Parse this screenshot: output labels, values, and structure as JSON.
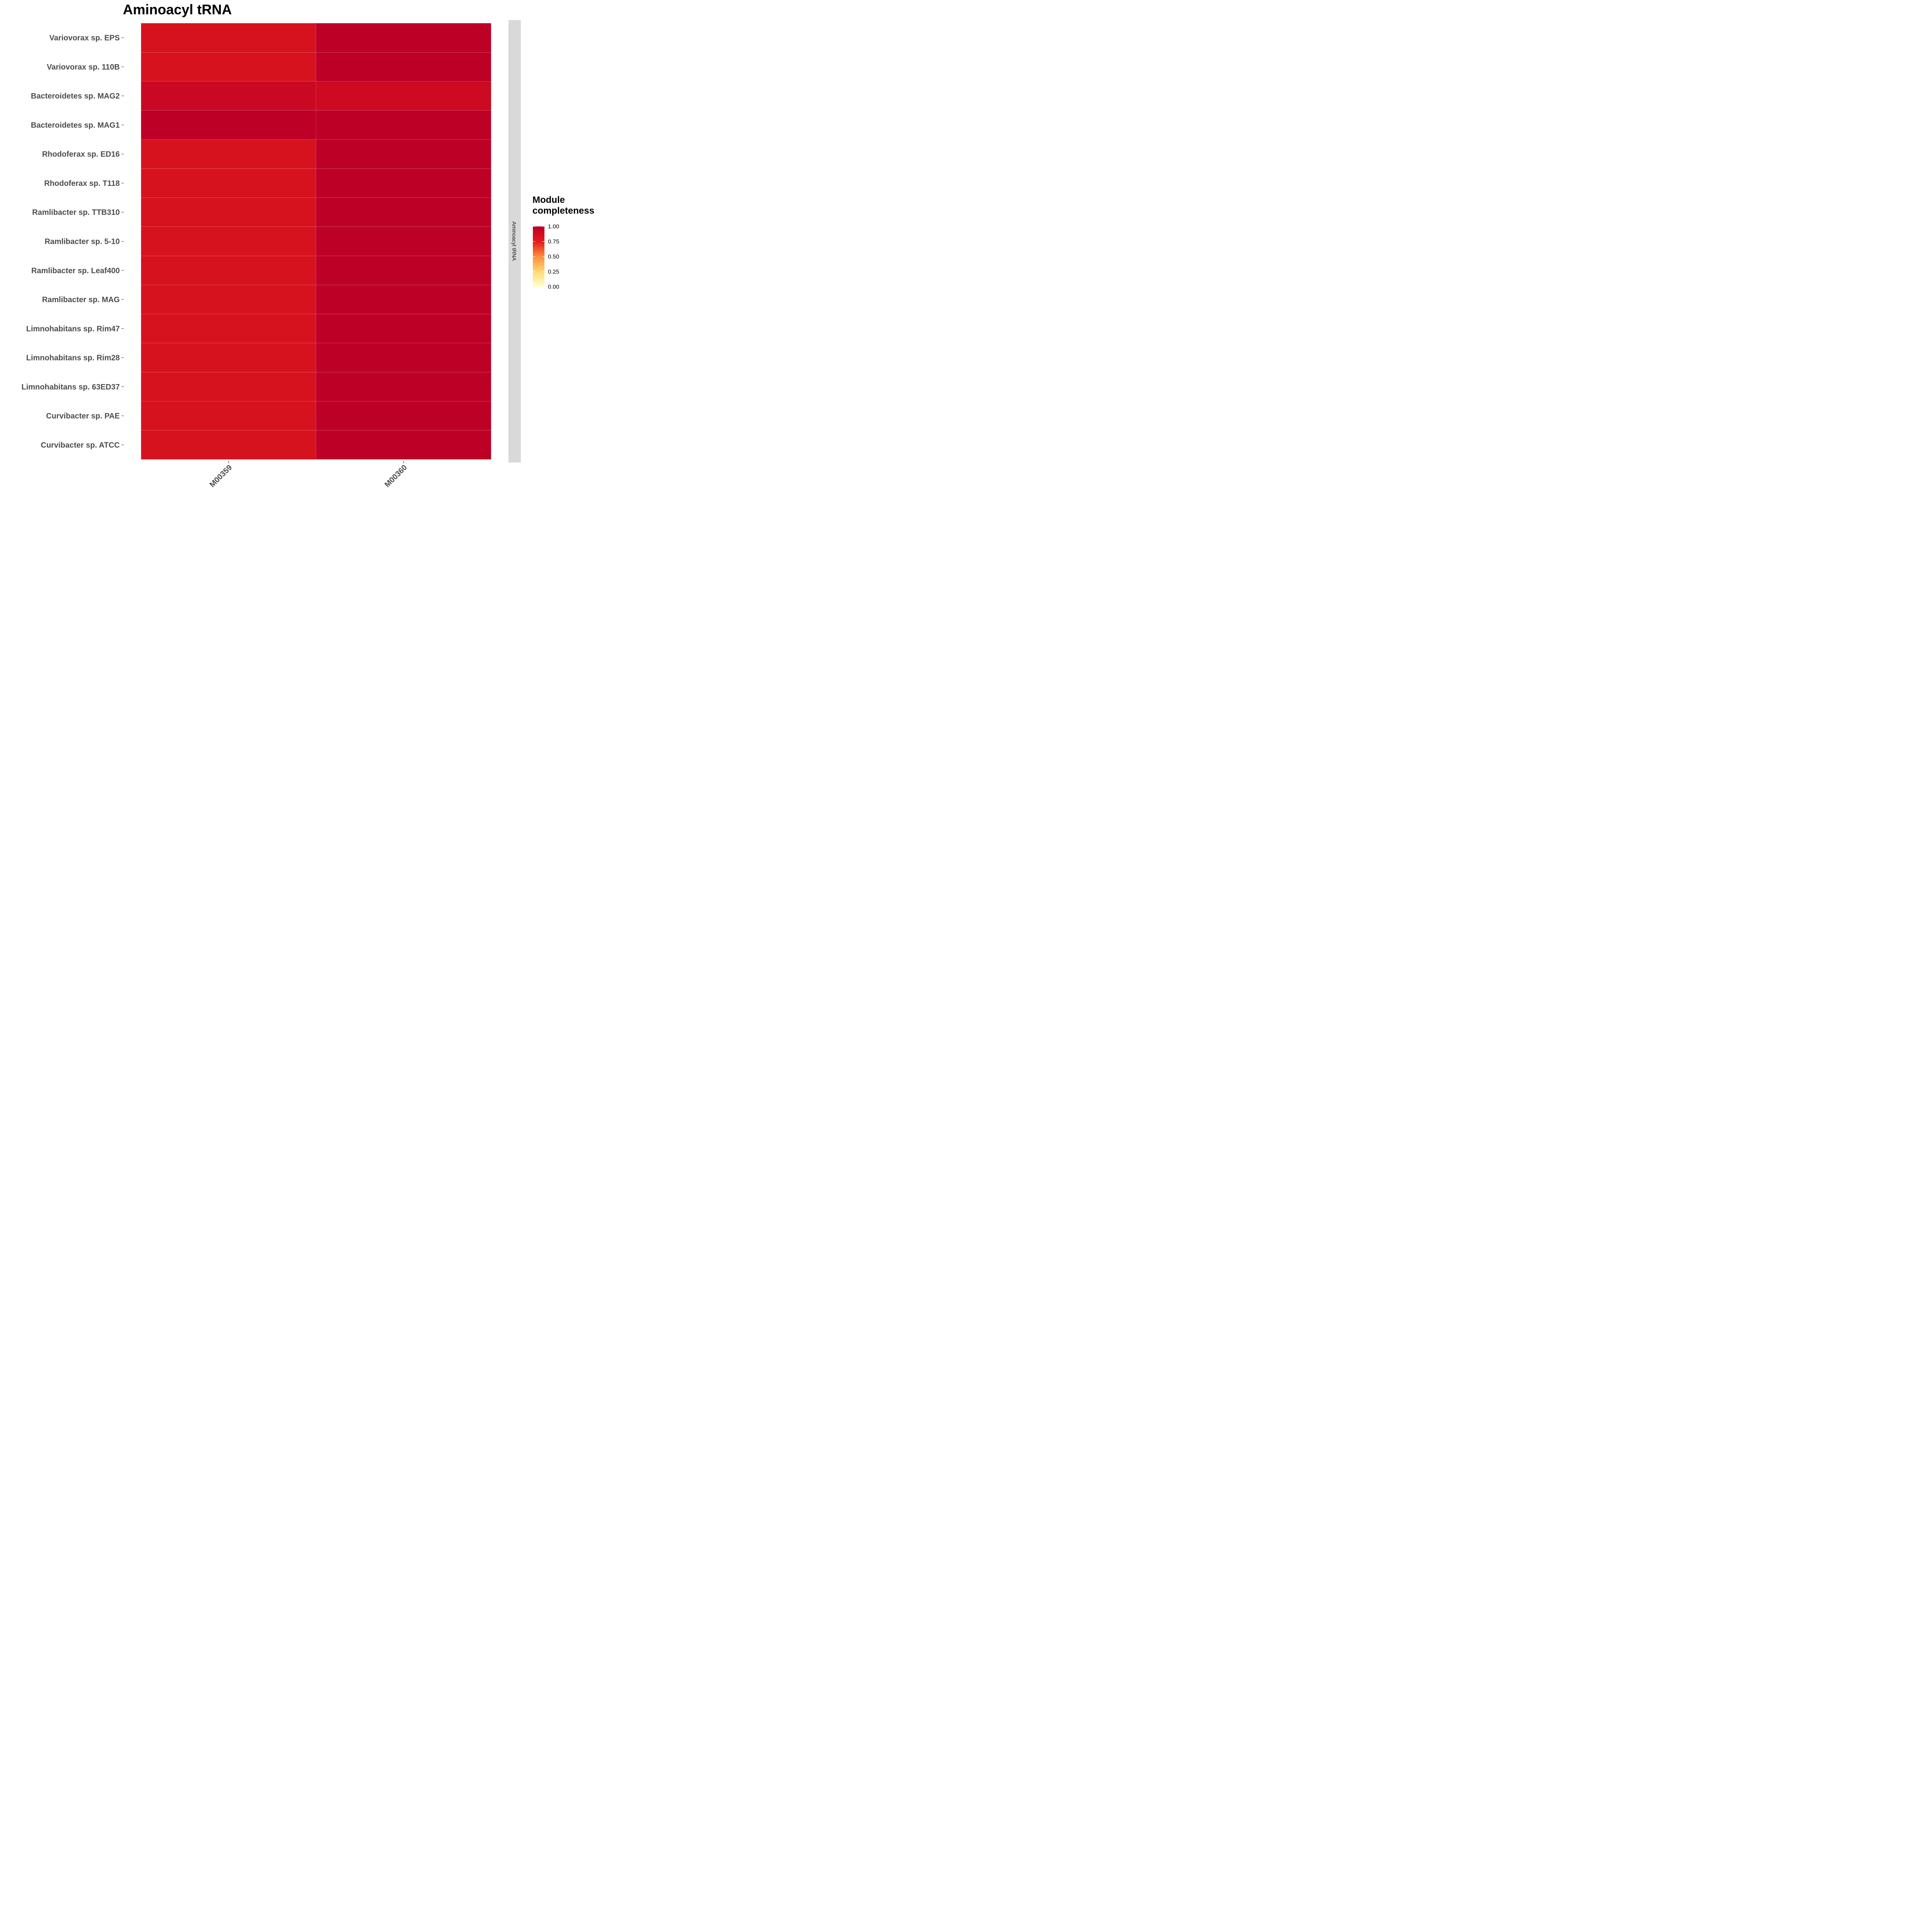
{
  "chart_data": {
    "type": "heatmap",
    "title": "Aminoacyl tRNA",
    "xlabel": "",
    "ylabel": "",
    "facet_label": "Aminoacyl tRNA",
    "x_categories": [
      "M00359",
      "M00360"
    ],
    "y_categories": [
      "Variovorax sp. EPS",
      "Variovorax sp. 110B",
      "Bacteroidetes sp. MAG2",
      "Bacteroidetes sp. MAG1",
      "Rhodoferax sp. ED16",
      "Rhodoferax sp. T118",
      "Ramlibacter sp. TTB310",
      "Ramlibacter sp. 5-10",
      "Ramlibacter sp. Leaf400",
      "Ramlibacter sp. MAG",
      "Limnohabitans sp. Rim47",
      "Limnohabitans sp. Rim28",
      "Limnohabitans sp. 63ED37",
      "Curvibacter sp. PAE",
      "Curvibacter sp. ATCC"
    ],
    "values": [
      [
        0.83,
        1.0
      ],
      [
        0.83,
        1.0
      ],
      [
        0.92,
        0.9
      ],
      [
        1.0,
        1.0
      ],
      [
        0.83,
        1.0
      ],
      [
        0.83,
        1.0
      ],
      [
        0.83,
        1.0
      ],
      [
        0.83,
        1.0
      ],
      [
        0.83,
        1.0
      ],
      [
        0.83,
        1.0
      ],
      [
        0.83,
        1.0
      ],
      [
        0.83,
        1.0
      ],
      [
        0.83,
        1.0
      ],
      [
        0.83,
        1.0
      ],
      [
        0.83,
        1.0
      ]
    ],
    "legend": {
      "title_line1": "Module",
      "title_line2": "completeness",
      "ticks": [
        "1.00",
        "0.75",
        "0.50",
        "0.25",
        "0.00"
      ],
      "tick_values": [
        1.0,
        0.75,
        0.5,
        0.25,
        0.0
      ],
      "range": [
        0,
        1
      ],
      "placement": "right"
    },
    "colors": {
      "low": "#ffffcc",
      "q1": "#fed976",
      "mid": "#fd8d3c",
      "q3": "#e31a1c",
      "high": "#bd0026",
      "strip": "#d9d9d9",
      "label": "#4d4d4d"
    },
    "grid": false
  }
}
